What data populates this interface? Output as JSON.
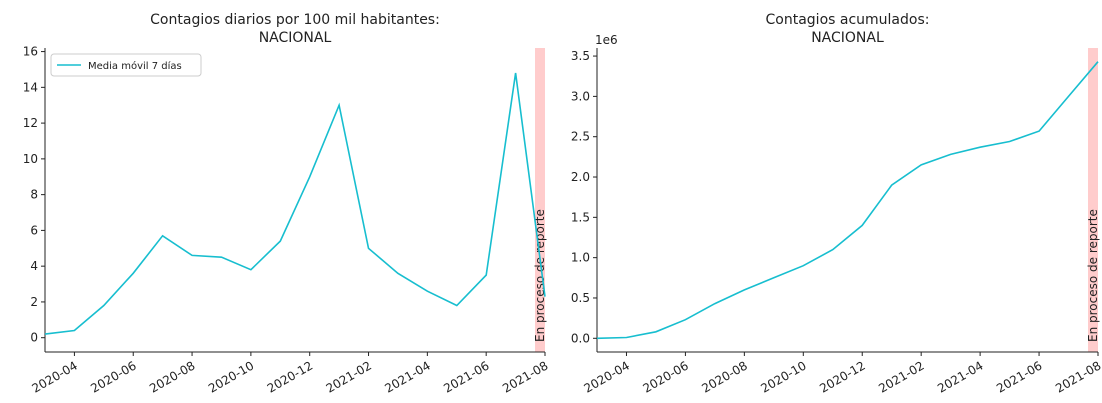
{
  "chart_data": [
    {
      "type": "line",
      "title": "Contagios diarios por 100 mil habitantes:",
      "subtitle": "NACIONAL",
      "x": [
        "2020-03",
        "2020-04",
        "2020-05",
        "2020-06",
        "2020-07",
        "2020-08",
        "2020-09",
        "2020-10",
        "2020-11",
        "2020-12",
        "2021-01",
        "2021-02",
        "2021-03",
        "2021-04",
        "2021-05",
        "2021-06",
        "2021-07",
        "2021-08"
      ],
      "series": [
        {
          "name": "Media móvil 7 días",
          "color": "#17becf",
          "values": [
            0.2,
            0.4,
            1.8,
            3.6,
            5.7,
            4.6,
            4.5,
            3.8,
            5.4,
            9.0,
            13.0,
            5.0,
            3.6,
            2.6,
            1.8,
            3.5,
            14.8,
            2.3
          ]
        }
      ],
      "xlim": [
        "2020-03",
        "2021-08"
      ],
      "xticks": [
        "2020-04",
        "2020-06",
        "2020-08",
        "2020-10",
        "2020-12",
        "2021-02",
        "2021-04",
        "2021-06",
        "2021-08"
      ],
      "ylim": [
        -0.8,
        16.2
      ],
      "yticks": [
        0,
        2,
        4,
        6,
        8,
        10,
        12,
        14,
        16
      ],
      "annotation": "En proceso de reporte",
      "span_color": "#ffcccc",
      "legend": "upper left"
    },
    {
      "type": "line",
      "title": "Contagios acumulados:",
      "subtitle": "NACIONAL",
      "offset_text": "1e6",
      "x": [
        "2020-03",
        "2020-04",
        "2020-05",
        "2020-06",
        "2020-07",
        "2020-08",
        "2020-09",
        "2020-10",
        "2020-11",
        "2020-12",
        "2021-01",
        "2021-02",
        "2021-03",
        "2021-04",
        "2021-05",
        "2021-06",
        "2021-07",
        "2021-08"
      ],
      "series": [
        {
          "color": "#17becf",
          "values": [
            0,
            10000,
            80000,
            230000,
            430000,
            600000,
            750000,
            900000,
            1100000,
            1400000,
            1900000,
            2150000,
            2280000,
            2370000,
            2440000,
            2570000,
            3000000,
            3430000
          ]
        }
      ],
      "xlim": [
        "2020-03",
        "2021-08"
      ],
      "xticks": [
        "2020-04",
        "2020-06",
        "2020-08",
        "2020-10",
        "2020-12",
        "2021-02",
        "2021-04",
        "2021-06",
        "2021-08"
      ],
      "ylim": [
        -170000,
        3600000
      ],
      "yticks": [
        {
          "value": 0,
          "label": "0.0"
        },
        {
          "value": 500000,
          "label": "0.5"
        },
        {
          "value": 1000000,
          "label": "1.0"
        },
        {
          "value": 1500000,
          "label": "1.5"
        },
        {
          "value": 2000000,
          "label": "2.0"
        },
        {
          "value": 2500000,
          "label": "2.5"
        },
        {
          "value": 3000000,
          "label": "3.0"
        },
        {
          "value": 3500000,
          "label": "3.5"
        }
      ],
      "annotation": "En proceso de reporte",
      "span_color": "#ffcccc"
    }
  ]
}
